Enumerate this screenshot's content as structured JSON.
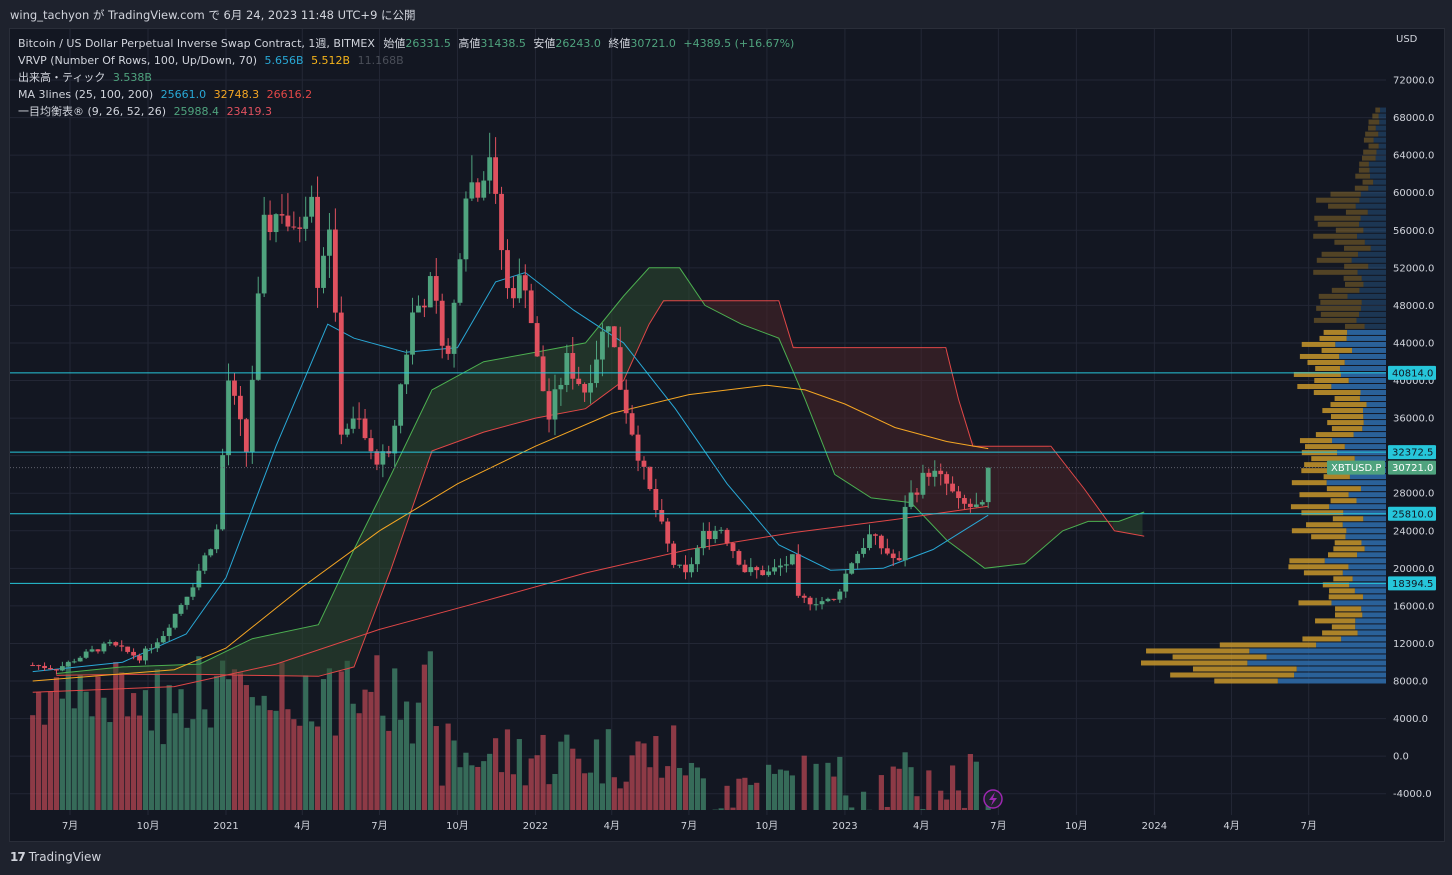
{
  "header": {
    "publisher_line": "wing_tachyon が TradingView.com で 6月 24, 2023 11:48 UTC+9 に公開"
  },
  "legend": {
    "symbol": "Bitcoin / US Dollar Perpetual Inverse Swap Contract, 1週, BITMEX",
    "open_label": "始値",
    "open": "26331.5",
    "high_label": "高値",
    "high": "31438.5",
    "low_label": "安値",
    "low": "26243.0",
    "close_label": "終値",
    "close": "30721.0",
    "change": "+4389.5 (+16.67%)",
    "vrvp_label": "VRVP (Number Of Rows, 100, Up/Down, 70)",
    "vrvp_up": "5.656B",
    "vrvp_down": "5.512B",
    "vrvp_total": "11.168B",
    "volume_label": "出来高・ティック",
    "volume": "3.538B",
    "ma_label": "MA 3lines (25, 100, 200)",
    "ma25": "25661.0",
    "ma100": "32748.3",
    "ma200": "26616.2",
    "ichimoku_label": "一目均衡表® (9, 26, 52, 26)",
    "ichimoku_a": "25988.4",
    "ichimoku_b": "23419.3"
  },
  "axis": {
    "currency": "USD"
  },
  "footer": {
    "brand": "TradingView"
  },
  "colors": {
    "up": "#4fa37e",
    "down": "#e0515f",
    "ma25": "#29a8d6",
    "ma100": "#f5a623",
    "ma200": "#e04747",
    "hline": "#26c6da",
    "vp_up": "#2f6fae",
    "vp_down": "#c8962a",
    "cloud_bull": "#2e4a30",
    "cloud_bear": "#4a2428"
  },
  "chart_data": {
    "type": "candlestick",
    "title": "Bitcoin / US Dollar Perpetual Inverse Swap Contract, 1週, BITMEX",
    "y_ticks": [
      "72000.0",
      "68000.0",
      "64000.0",
      "60000.0",
      "56000.0",
      "52000.0",
      "48000.0",
      "44000.0",
      "40000.0",
      "36000.0",
      "32000.0",
      "28000.0",
      "24000.0",
      "20000.0",
      "16000.0",
      "12000.0",
      "8000.0",
      "4000.0",
      "0.0",
      "-4000.0"
    ],
    "x_ticks": [
      {
        "label": "7月",
        "date": "2020-07-01"
      },
      {
        "label": "10月",
        "date": "2020-10-01"
      },
      {
        "label": "2021",
        "date": "2021-01-01"
      },
      {
        "label": "4月",
        "date": "2021-04-01"
      },
      {
        "label": "7月",
        "date": "2021-07-01"
      },
      {
        "label": "10月",
        "date": "2021-10-01"
      },
      {
        "label": "2022",
        "date": "2022-01-01"
      },
      {
        "label": "4月",
        "date": "2022-04-01"
      },
      {
        "label": "7月",
        "date": "2022-07-01"
      },
      {
        "label": "10月",
        "date": "2022-10-01"
      },
      {
        "label": "2023",
        "date": "2023-01-01"
      },
      {
        "label": "4月",
        "date": "2023-04-01"
      },
      {
        "label": "7月",
        "date": "2023-07-01"
      },
      {
        "label": "10月",
        "date": "2023-10-01"
      },
      {
        "label": "2024",
        "date": "2024-01-01"
      },
      {
        "label": "4月",
        "date": "2024-04-01"
      },
      {
        "label": "7月",
        "date": "2024-07-01"
      }
    ],
    "horizontal_levels": [
      "40814.0",
      "32372.5",
      "25810.0",
      "18394.5"
    ],
    "last_price_label": "XBTUSD.P",
    "last_price": "30721.0",
    "close_path": [
      [
        "2020-05-18",
        9700
      ],
      [
        "2020-06-15",
        9300
      ],
      [
        "2020-07-27",
        11200
      ],
      [
        "2020-08-17",
        11900
      ],
      [
        "2020-09-21",
        10500
      ],
      [
        "2020-10-19",
        13000
      ],
      [
        "2020-11-23",
        18400
      ],
      [
        "2020-12-21",
        24000
      ],
      [
        "2021-01-04",
        40000
      ],
      [
        "2021-01-25",
        32500
      ],
      [
        "2021-02-15",
        56000
      ],
      [
        "2021-03-08",
        58500
      ],
      [
        "2021-03-22",
        55000
      ],
      [
        "2021-04-12",
        61000
      ],
      [
        "2021-04-19",
        51000
      ],
      [
        "2021-05-03",
        57000
      ],
      [
        "2021-05-10",
        46000
      ],
      [
        "2021-05-17",
        35000
      ],
      [
        "2021-06-07",
        35500
      ],
      [
        "2021-06-21",
        32000
      ],
      [
        "2021-07-12",
        31500
      ],
      [
        "2021-07-26",
        39500
      ],
      [
        "2021-08-09",
        47000
      ],
      [
        "2021-08-30",
        50000
      ],
      [
        "2021-09-20",
        42500
      ],
      [
        "2021-09-27",
        48000
      ],
      [
        "2021-10-11",
        61000
      ],
      [
        "2021-10-25",
        61000
      ],
      [
        "2021-11-08",
        64500
      ],
      [
        "2021-11-15",
        58500
      ],
      [
        "2021-11-29",
        49500
      ],
      [
        "2021-12-20",
        50800
      ],
      [
        "2022-01-03",
        42000
      ],
      [
        "2022-01-17",
        36000
      ],
      [
        "2022-02-07",
        42000
      ],
      [
        "2022-02-28",
        39000
      ],
      [
        "2022-03-28",
        46800
      ],
      [
        "2022-04-11",
        39500
      ],
      [
        "2022-05-09",
        30000
      ],
      [
        "2022-06-13",
        20500
      ],
      [
        "2022-06-27",
        19200
      ],
      [
        "2022-07-18",
        23500
      ],
      [
        "2022-08-08",
        24300
      ],
      [
        "2022-09-05",
        19800
      ],
      [
        "2022-10-03",
        19500
      ],
      [
        "2022-10-31",
        20900
      ],
      [
        "2022-11-07",
        16600
      ],
      [
        "2022-12-19",
        16500
      ],
      [
        "2023-01-09",
        20800
      ],
      [
        "2023-01-30",
        23400
      ],
      [
        "2023-03-06",
        20500
      ],
      [
        "2023-03-13",
        26900
      ],
      [
        "2023-04-10",
        30400
      ],
      [
        "2023-05-01",
        28900
      ],
      [
        "2023-05-15",
        26800
      ],
      [
        "2023-06-12",
        26300
      ],
      [
        "2023-06-19",
        30721
      ]
    ],
    "ma_25": [
      [
        "2020-05-18",
        9000
      ],
      [
        "2020-09-01",
        10000
      ],
      [
        "2020-11-15",
        13000
      ],
      [
        "2021-01-01",
        19000
      ],
      [
        "2021-03-01",
        33000
      ],
      [
        "2021-05-01",
        46000
      ],
      [
        "2021-06-01",
        44500
      ],
      [
        "2021-08-01",
        43000
      ],
      [
        "2021-10-01",
        43500
      ],
      [
        "2021-11-15",
        50500
      ],
      [
        "2021-12-20",
        51500
      ],
      [
        "2022-02-15",
        47500
      ],
      [
        "2022-04-15",
        44000
      ],
      [
        "2022-06-15",
        37000
      ],
      [
        "2022-08-15",
        29000
      ],
      [
        "2022-10-15",
        22500
      ],
      [
        "2022-12-15",
        19800
      ],
      [
        "2023-02-15",
        20000
      ],
      [
        "2023-04-15",
        22000
      ],
      [
        "2023-06-19",
        25661
      ]
    ],
    "ma_100": [
      [
        "2020-05-18",
        8000
      ],
      [
        "2020-11-01",
        9200
      ],
      [
        "2021-01-01",
        11500
      ],
      [
        "2021-04-01",
        18000
      ],
      [
        "2021-07-01",
        24000
      ],
      [
        "2021-10-01",
        29000
      ],
      [
        "2022-01-01",
        33000
      ],
      [
        "2022-04-01",
        36500
      ],
      [
        "2022-07-01",
        38500
      ],
      [
        "2022-10-01",
        39500
      ],
      [
        "2022-11-15",
        39000
      ],
      [
        "2023-01-01",
        37500
      ],
      [
        "2023-03-01",
        35000
      ],
      [
        "2023-05-01",
        33500
      ],
      [
        "2023-06-19",
        32748
      ]
    ],
    "ma_200": [
      [
        "2020-05-18",
        6800
      ],
      [
        "2020-11-01",
        7400
      ],
      [
        "2021-03-01",
        9800
      ],
      [
        "2021-07-01",
        13500
      ],
      [
        "2021-11-01",
        16500
      ],
      [
        "2022-03-01",
        19500
      ],
      [
        "2022-07-01",
        22000
      ],
      [
        "2022-11-01",
        23800
      ],
      [
        "2023-03-01",
        25200
      ],
      [
        "2023-06-19",
        26616
      ]
    ],
    "ichimoku_span_a": [
      [
        "2020-06-15",
        8800
      ],
      [
        "2020-09-01",
        9500
      ],
      [
        "2020-12-01",
        9800
      ],
      [
        "2021-02-01",
        12500
      ],
      [
        "2021-04-20",
        14000
      ],
      [
        "2021-06-01",
        22000
      ],
      [
        "2021-07-15",
        30000
      ],
      [
        "2021-09-01",
        39000
      ],
      [
        "2021-11-01",
        42000
      ],
      [
        "2022-01-01",
        43000
      ],
      [
        "2022-03-01",
        44000
      ],
      [
        "2022-04-15",
        49000
      ],
      [
        "2022-05-15",
        52000
      ],
      [
        "2022-06-20",
        52000
      ],
      [
        "2022-07-20",
        48000
      ],
      [
        "2022-09-01",
        46000
      ],
      [
        "2022-10-15",
        44500
      ],
      [
        "2022-11-15",
        38000
      ],
      [
        "2022-12-20",
        30000
      ],
      [
        "2023-02-01",
        27500
      ],
      [
        "2023-03-20",
        27000
      ],
      [
        "2023-05-01",
        23000
      ],
      [
        "2023-06-15",
        20000
      ],
      [
        "2023-08-01",
        20500
      ],
      [
        "2023-09-15",
        24000
      ],
      [
        "2023-10-15",
        25000
      ],
      [
        "2023-11-20",
        25000
      ],
      [
        "2023-12-20",
        26000
      ]
    ],
    "ichimoku_span_b": [
      [
        "2020-06-15",
        8600
      ],
      [
        "2020-09-01",
        8700
      ],
      [
        "2020-12-01",
        8700
      ],
      [
        "2021-02-01",
        8600
      ],
      [
        "2021-04-20",
        8500
      ],
      [
        "2021-06-01",
        9500
      ],
      [
        "2021-07-15",
        20000
      ],
      [
        "2021-09-01",
        32500
      ],
      [
        "2021-11-01",
        34500
      ],
      [
        "2022-01-01",
        36000
      ],
      [
        "2022-03-01",
        37000
      ],
      [
        "2022-04-15",
        40000
      ],
      [
        "2022-05-15",
        46000
      ],
      [
        "2022-06-01",
        48500
      ],
      [
        "2022-10-15",
        48500
      ],
      [
        "2022-11-01",
        43500
      ],
      [
        "2023-04-30",
        43500
      ],
      [
        "2023-05-15",
        38000
      ],
      [
        "2023-06-01",
        33000
      ],
      [
        "2023-09-01",
        33000
      ],
      [
        "2023-10-10",
        28500
      ],
      [
        "2023-11-15",
        24000
      ],
      [
        "2023-12-20",
        23419
      ]
    ],
    "volume_profile_y_ticks_range": [
      8000,
      72000
    ],
    "volume_axis_range": [
      -4000,
      72000
    ]
  }
}
